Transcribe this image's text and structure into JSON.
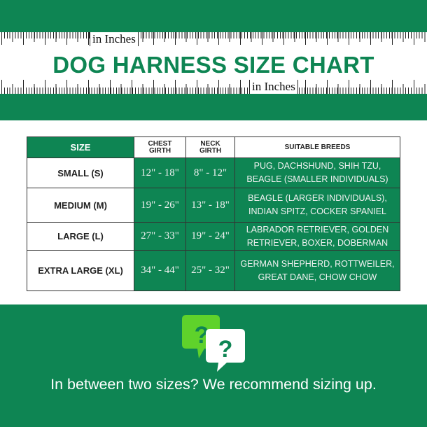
{
  "header": {
    "title": "DOG HARNESS SIZE CHART",
    "unit_label_top": "in Inches",
    "unit_label_bottom": "in Inches"
  },
  "table": {
    "headers": {
      "size": "SIZE",
      "chest_1": "CHEST",
      "chest_2": "GIRTH",
      "neck_1": "NECK",
      "neck_2": "GIRTH",
      "breeds": "SUITABLE BREEDS"
    },
    "rows": [
      {
        "size": "SMALL (S)",
        "chest": "12\" - 18\"",
        "neck": "8\" - 12\"",
        "breeds_1": "PUG, DACHSHUND, SHIH TZU,",
        "breeds_2": "BEAGLE (SMALLER INDIVIDUALS)"
      },
      {
        "size": "MEDIUM (M)",
        "chest": "19\" - 26\"",
        "neck": "13\" - 18\"",
        "breeds_1": "BEAGLE (LARGER INDIVIDUALS),",
        "breeds_2": "INDIAN SPITZ, COCKER SPANIEL"
      },
      {
        "size": "LARGE (L)",
        "chest": "27\" - 33\"",
        "neck": "19\" - 24\"",
        "breeds_1": "LABRADOR RETRIEVER, GOLDEN",
        "breeds_2": "RETRIEVER, BOXER, DOBERMAN"
      },
      {
        "size": "EXTRA LARGE (XL)",
        "chest": "34\" - 44\"",
        "neck": "25\" - 32\"",
        "breeds_1": "GERMAN SHEPHERD, ROTTWEILER,",
        "breeds_2": "GREAT DANE, CHOW CHOW"
      }
    ]
  },
  "footer": {
    "text": "In between two sizes? We recommend sizing up.",
    "icon": "question-speech-bubbles-icon"
  },
  "colors": {
    "brand_green": "#0e8553",
    "accent_lime": "#5fd22b"
  }
}
